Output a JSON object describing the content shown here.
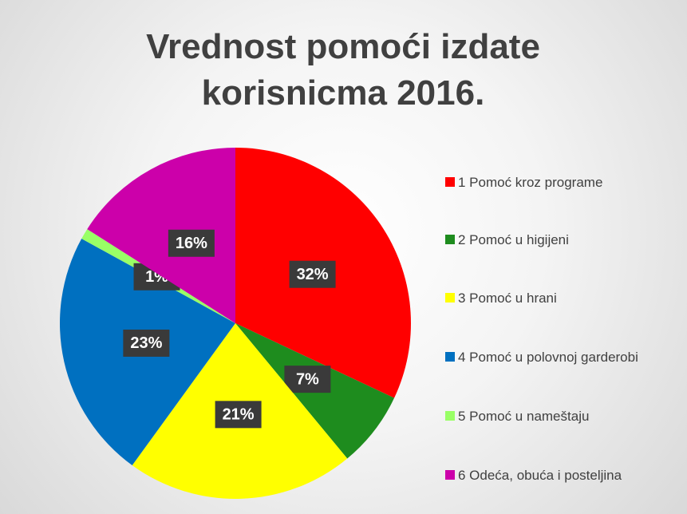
{
  "chart_data": {
    "type": "pie",
    "title": "Vrednost pomoći izdate korisnicma 2016.",
    "categories": [
      "1 Pomoć kroz programe",
      "2 Pomoć u higijeni",
      "3 Pomoć u hrani",
      "4 Pomoć u polovnoj garderobi",
      "5 Pomoć u nameštaju",
      "6 Odeća, obuća i posteljina"
    ],
    "values": [
      32,
      7,
      21,
      23,
      1,
      16
    ],
    "value_labels": [
      "32%",
      "7%",
      "21%",
      "23%",
      "1%",
      "16%"
    ],
    "colors": [
      "#ff0000",
      "#1e8c1e",
      "#ffff00",
      "#0070c0",
      "#99ff66",
      "#cc00aa"
    ],
    "legend": "right"
  }
}
